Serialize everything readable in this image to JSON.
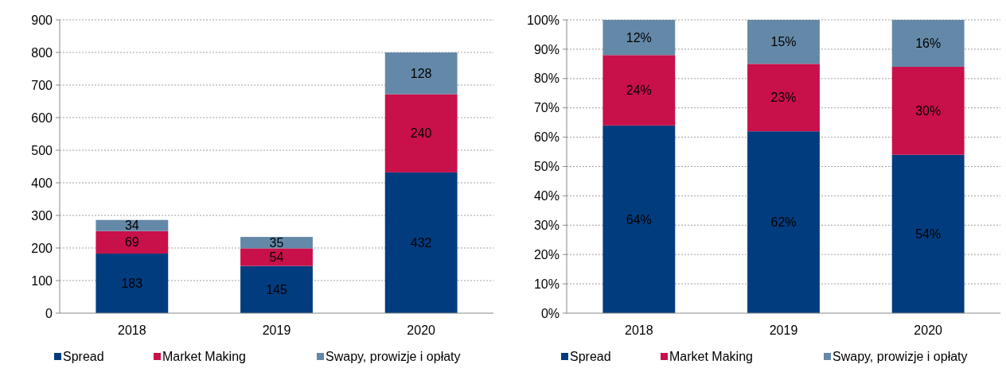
{
  "chart_data": [
    {
      "type": "bar",
      "stacked": true,
      "categories": [
        "2018",
        "2019",
        "2020"
      ],
      "series": [
        {
          "name": "Spread",
          "color": "#003c7e",
          "values": [
            183,
            145,
            432
          ]
        },
        {
          "name": "Market Making",
          "color": "#c8104a",
          "values": [
            69,
            54,
            240
          ]
        },
        {
          "name": "Swapy, prowizje i opłaty",
          "color": "#6489a8",
          "values": [
            34,
            35,
            128
          ]
        }
      ],
      "ylim": [
        0,
        900
      ],
      "yticks": [
        0,
        100,
        200,
        300,
        400,
        500,
        600,
        700,
        800,
        900
      ],
      "grid": "y",
      "legend": "bottom",
      "data_labels": true
    },
    {
      "type": "bar",
      "stacked": true,
      "categories": [
        "2018",
        "2019",
        "2020"
      ],
      "series": [
        {
          "name": "Spread",
          "color": "#003c7e",
          "values": [
            64,
            62,
            54
          ],
          "value_labels": [
            "64%",
            "62%",
            "54%"
          ]
        },
        {
          "name": "Market Making",
          "color": "#c8104a",
          "values": [
            24,
            23,
            30
          ],
          "value_labels": [
            "24%",
            "23%",
            "30%"
          ]
        },
        {
          "name": "Swapy, prowizje i opłaty",
          "color": "#6489a8",
          "values": [
            12,
            15,
            16
          ],
          "value_labels": [
            "12%",
            "15%",
            "16%"
          ]
        }
      ],
      "ylim": [
        0,
        100
      ],
      "yticks": [
        {
          "value": 0,
          "label": "0%"
        },
        {
          "value": 10,
          "label": "10%"
        },
        {
          "value": 20,
          "label": "20%"
        },
        {
          "value": 30,
          "label": "30%"
        },
        {
          "value": 40,
          "label": "40%"
        },
        {
          "value": 50,
          "label": "50%"
        },
        {
          "value": 60,
          "label": "60%"
        },
        {
          "value": 70,
          "label": "70%"
        },
        {
          "value": 80,
          "label": "80%"
        },
        {
          "value": 90,
          "label": "90%"
        },
        {
          "value": 100,
          "label": "100%"
        }
      ],
      "grid": "y",
      "legend": "bottom"
    }
  ]
}
